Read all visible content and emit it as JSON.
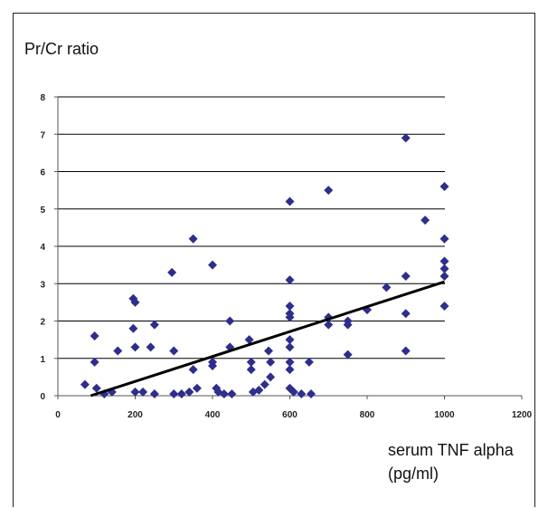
{
  "chart_data": {
    "type": "scatter",
    "title": "",
    "xlabel_line1": "serum TNF alpha",
    "xlabel_line2": "(pg/ml)",
    "ylabel": "Pr/Cr ratio",
    "xlim": [
      0,
      1200
    ],
    "ylim": [
      0,
      8
    ],
    "xticks": [
      0,
      200,
      400,
      600,
      800,
      1000,
      1200
    ],
    "yticks": [
      0,
      1,
      2,
      3,
      4,
      5,
      6,
      7,
      8
    ],
    "grid": "horizontal",
    "legend": "none",
    "point_color": "#2e2e8c",
    "trendline_color": "#000000",
    "trendline": {
      "x": [
        85,
        1000
      ],
      "y": [
        0,
        3.05
      ]
    },
    "points": [
      [
        70,
        0.3
      ],
      [
        95,
        1.6
      ],
      [
        95,
        0.9
      ],
      [
        100,
        0.2
      ],
      [
        120,
        0.05
      ],
      [
        140,
        0.1
      ],
      [
        155,
        1.2
      ],
      [
        195,
        2.6
      ],
      [
        200,
        2.5
      ],
      [
        195,
        1.8
      ],
      [
        200,
        1.3
      ],
      [
        200,
        0.1
      ],
      [
        220,
        0.1
      ],
      [
        240,
        1.3
      ],
      [
        250,
        1.9
      ],
      [
        250,
        0.05
      ],
      [
        295,
        3.3
      ],
      [
        300,
        1.2
      ],
      [
        300,
        0.05
      ],
      [
        320,
        0.05
      ],
      [
        340,
        0.1
      ],
      [
        350,
        4.2
      ],
      [
        350,
        0.7
      ],
      [
        360,
        0.2
      ],
      [
        400,
        3.5
      ],
      [
        400,
        0.9
      ],
      [
        400,
        0.8
      ],
      [
        410,
        0.2
      ],
      [
        415,
        0.1
      ],
      [
        430,
        0.05
      ],
      [
        445,
        2.0
      ],
      [
        445,
        1.3
      ],
      [
        450,
        0.05
      ],
      [
        495,
        1.5
      ],
      [
        500,
        0.9
      ],
      [
        500,
        0.7
      ],
      [
        505,
        0.1
      ],
      [
        520,
        0.15
      ],
      [
        535,
        0.3
      ],
      [
        545,
        1.2
      ],
      [
        550,
        0.9
      ],
      [
        550,
        0.5
      ],
      [
        600,
        5.2
      ],
      [
        600,
        3.1
      ],
      [
        600,
        2.4
      ],
      [
        600,
        2.2
      ],
      [
        600,
        2.1
      ],
      [
        600,
        1.5
      ],
      [
        600,
        1.3
      ],
      [
        600,
        0.9
      ],
      [
        600,
        0.7
      ],
      [
        600,
        0.2
      ],
      [
        610,
        0.1
      ],
      [
        630,
        0.05
      ],
      [
        650,
        0.9
      ],
      [
        655,
        0.05
      ],
      [
        700,
        5.5
      ],
      [
        700,
        2.1
      ],
      [
        700,
        1.9
      ],
      [
        750,
        2.0
      ],
      [
        750,
        1.9
      ],
      [
        750,
        1.1
      ],
      [
        800,
        2.3
      ],
      [
        850,
        2.9
      ],
      [
        900,
        6.9
      ],
      [
        900,
        3.2
      ],
      [
        900,
        2.2
      ],
      [
        900,
        1.2
      ],
      [
        950,
        4.7
      ],
      [
        1000,
        5.6
      ],
      [
        1000,
        4.2
      ],
      [
        1000,
        3.6
      ],
      [
        1000,
        3.4
      ],
      [
        1000,
        3.2
      ],
      [
        1000,
        2.4
      ]
    ]
  }
}
